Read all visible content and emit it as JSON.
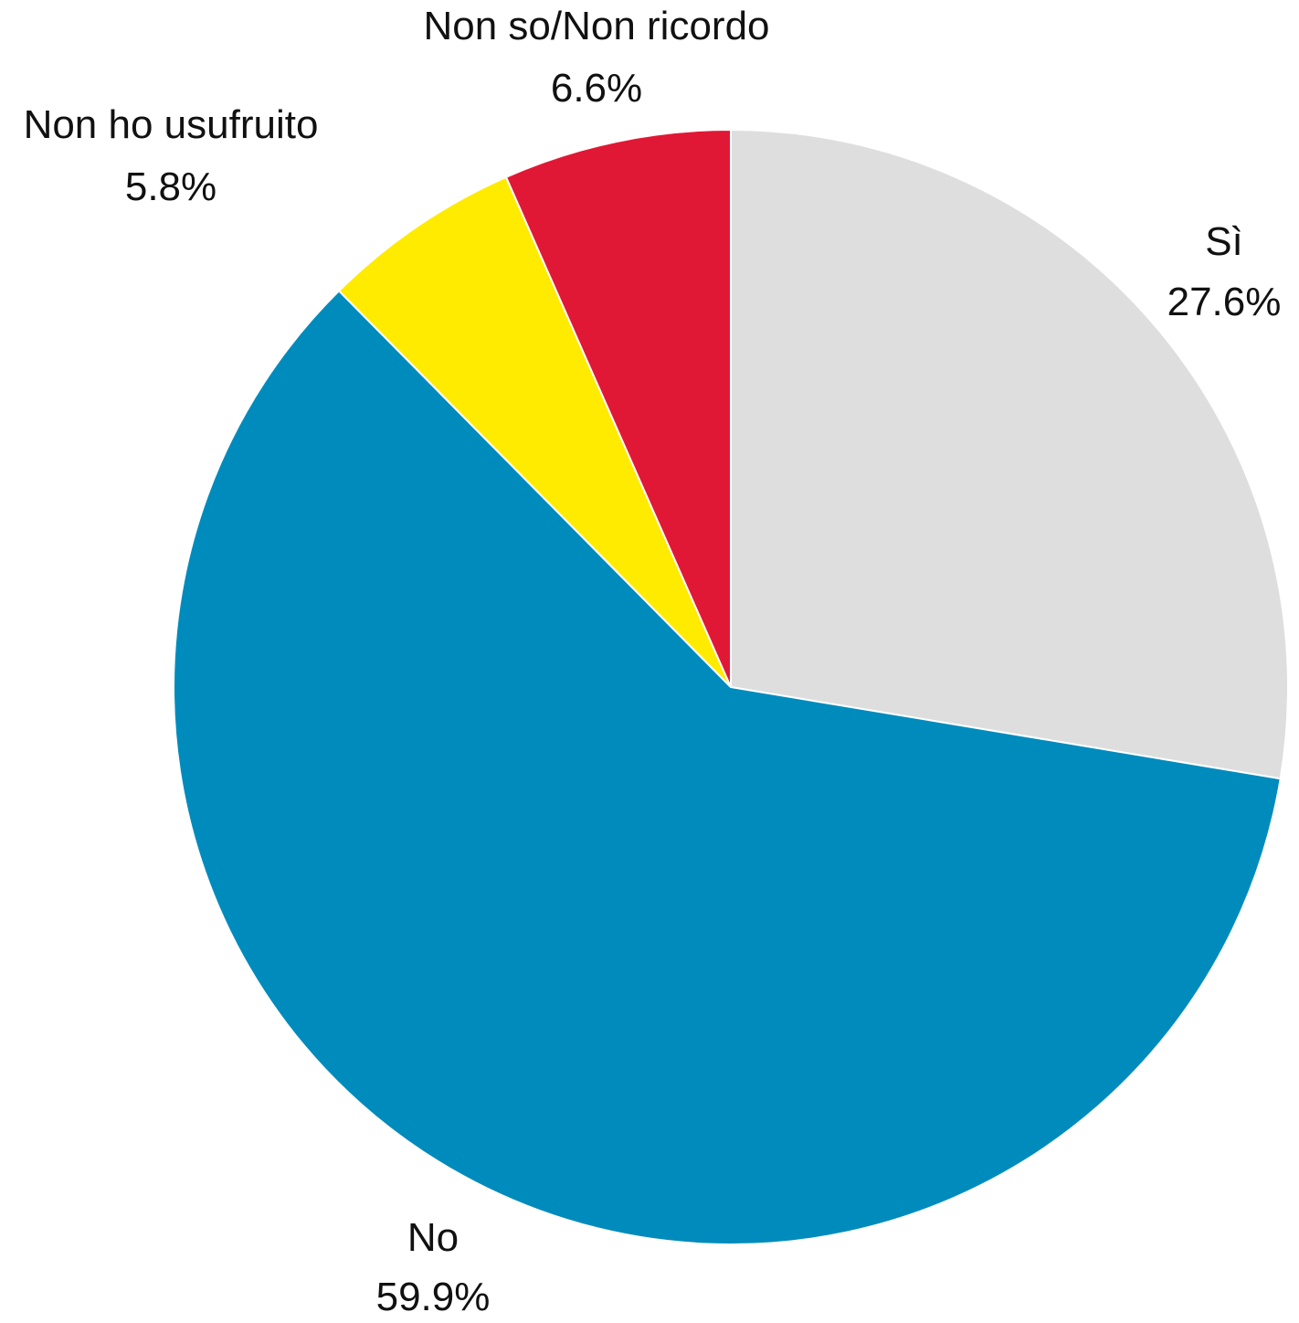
{
  "chart_data": {
    "type": "pie",
    "title": "",
    "slices": [
      {
        "label": "Sì",
        "value": 27.6,
        "value_label": "27.6%",
        "color": "#DEDEDE"
      },
      {
        "label": "No",
        "value": 59.9,
        "value_label": "59.9%",
        "color": "#008BBD"
      },
      {
        "label": "Non ho usufruito",
        "value": 5.8,
        "value_label": "5.8%",
        "color": "#FFEB00"
      },
      {
        "label": "Non so/Non ricordo",
        "value": 6.6,
        "value_label": "6.6%",
        "color": "#E01835"
      }
    ],
    "start_angle": "12 o'clock",
    "direction": "clockwise",
    "legend": "none",
    "labels": "outside"
  }
}
